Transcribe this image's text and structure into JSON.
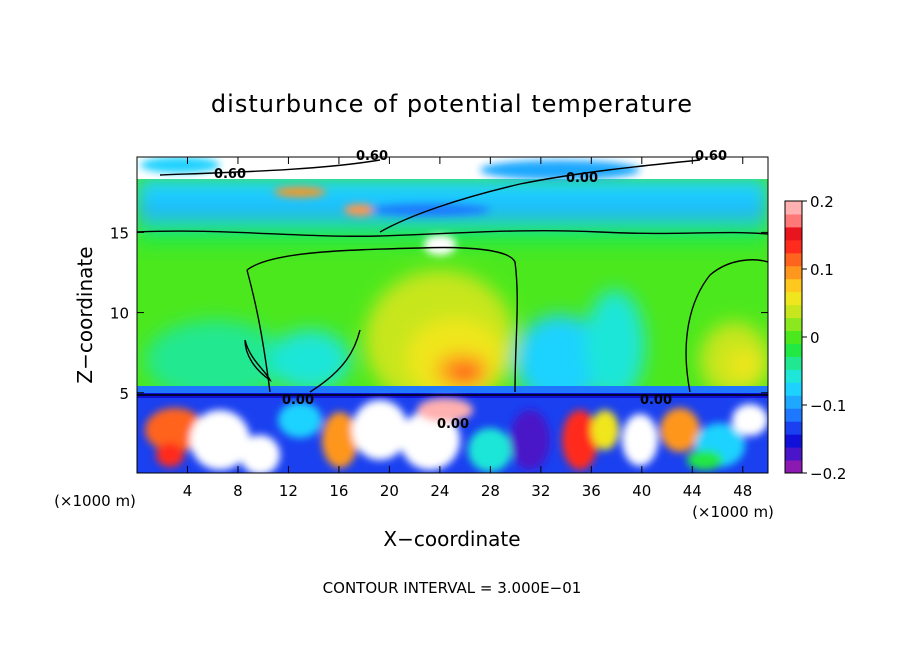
{
  "chart_data": {
    "type": "heatmap",
    "title": "disturbunce of potential temperature",
    "xlabel": "X−coordinate",
    "ylabel": "Z−coordinate",
    "x_unit": "(×1000 m)",
    "y_unit": "(×1000 m)",
    "xlim": [
      0,
      50
    ],
    "ylim": [
      0,
      19.7
    ],
    "x_ticks": [
      4,
      8,
      12,
      16,
      20,
      24,
      28,
      32,
      36,
      40,
      44,
      48
    ],
    "y_ticks": [
      5,
      10,
      15
    ],
    "colorbar": {
      "range": [
        -0.2,
        0.2
      ],
      "ticks": [
        "0.2",
        "0.1",
        "0",
        "−0.1",
        "−0.2"
      ],
      "tick_values": [
        0.2,
        0.1,
        0,
        -0.1,
        -0.2
      ],
      "colors": [
        "#8c1ab0",
        "#4a14c8",
        "#1010d8",
        "#1a40f0",
        "#1e78ff",
        "#1ea8ff",
        "#1ed2ff",
        "#1ee6d8",
        "#20e890",
        "#22e844",
        "#4ce81e",
        "#8ce81e",
        "#c8e61e",
        "#f0e61e",
        "#ffc81e",
        "#ff961e",
        "#ff641e",
        "#ff2c1e",
        "#e8141e",
        "#ff7878",
        "#ffb0b0"
      ]
    },
    "contour_labels": [
      "0.60",
      "0.60",
      "0.60",
      "0.00",
      "0.00",
      "0.00",
      "0.00"
    ],
    "annotation": "CONTOUR INTERVAL = 3.000E−01",
    "grid": false
  }
}
